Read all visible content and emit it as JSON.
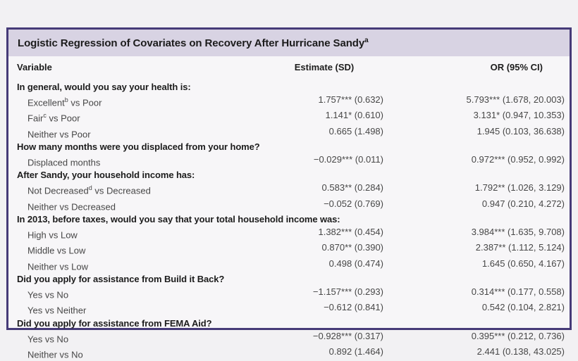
{
  "table": {
    "title": "Logistic Regression of Covariates on Recovery After Hurricane Sandy",
    "title_superscript": "a",
    "columns": [
      "Variable",
      "Estimate (SD)",
      "OR (95% CI)"
    ],
    "sections": [
      {
        "header": "In general, would you say your health is:",
        "rows": [
          {
            "label_pre": "Excellent",
            "label_sup": "b",
            "label_post": " vs Poor",
            "estimate": "1.757*** (0.632)",
            "or": "5.793*** (1.678, 20.003)"
          },
          {
            "label_pre": "Fair",
            "label_sup": "c",
            "label_post": " vs Poor",
            "estimate": "1.141* (0.610)",
            "or": "3.131* (0.947, 10.353)"
          },
          {
            "label_pre": "Neither vs Poor",
            "label_sup": "",
            "label_post": "",
            "estimate": "0.665 (1.498)",
            "or": "1.945 (0.103, 36.638)"
          }
        ]
      },
      {
        "header": "How many months were you displaced from your home?",
        "rows": [
          {
            "label_pre": "Displaced months",
            "label_sup": "",
            "label_post": "",
            "estimate": "−0.029*** (0.011)",
            "or": "0.972*** (0.952, 0.992)"
          }
        ]
      },
      {
        "header": "After Sandy, your household income has:",
        "rows": [
          {
            "label_pre": "Not Decreased",
            "label_sup": "d",
            "label_post": " vs Decreased",
            "estimate": "0.583** (0.284)",
            "or": "1.792** (1.026, 3.129)"
          },
          {
            "label_pre": "Neither vs Decreased",
            "label_sup": "",
            "label_post": "",
            "estimate": "−0.052 (0.769)",
            "or": "0.947 (0.210, 4.272)"
          }
        ]
      },
      {
        "header": "In 2013, before taxes, would you say that your total household income was:",
        "rows": [
          {
            "label_pre": "High vs Low",
            "label_sup": "",
            "label_post": "",
            "estimate": "1.382*** (0.454)",
            "or": "3.984*** (1.635, 9.708)"
          },
          {
            "label_pre": "Middle vs Low",
            "label_sup": "",
            "label_post": "",
            "estimate": "0.870** (0.390)",
            "or": "2.387** (1.112, 5.124)"
          },
          {
            "label_pre": "Neither vs Low",
            "label_sup": "",
            "label_post": "",
            "estimate": "0.498 (0.474)",
            "or": "1.645 (0.650, 4.167)"
          }
        ]
      },
      {
        "header": "Did you apply for assistance from Build it Back?",
        "rows": [
          {
            "label_pre": "Yes vs No",
            "label_sup": "",
            "label_post": "",
            "estimate": "−1.157*** (0.293)",
            "or": "0.314*** (0.177, 0.558)"
          },
          {
            "label_pre": "Yes vs Neither",
            "label_sup": "",
            "label_post": "",
            "estimate": "−0.612 (0.841)",
            "or": "0.542 (0.104, 2.821)"
          }
        ]
      },
      {
        "header": "Did you apply for assistance from FEMA Aid?",
        "rows": [
          {
            "label_pre": "Yes vs No",
            "label_sup": "",
            "label_post": "",
            "estimate": "−0.928*** (0.317)",
            "or": "0.395*** (0.212, 0.736)"
          },
          {
            "label_pre": "Neither vs No",
            "label_sup": "",
            "label_post": "",
            "estimate": "0.892 (1.464)",
            "or": "2.441 (0.138, 43.025)"
          }
        ]
      }
    ]
  },
  "colors": {
    "page_background": "#f2f1f3",
    "table_border": "#463b78",
    "title_bar_background": "#d8d3e3",
    "table_body_background": "#f7f6f8",
    "heading_text": "#1c1c1c",
    "data_text": "#474747"
  }
}
